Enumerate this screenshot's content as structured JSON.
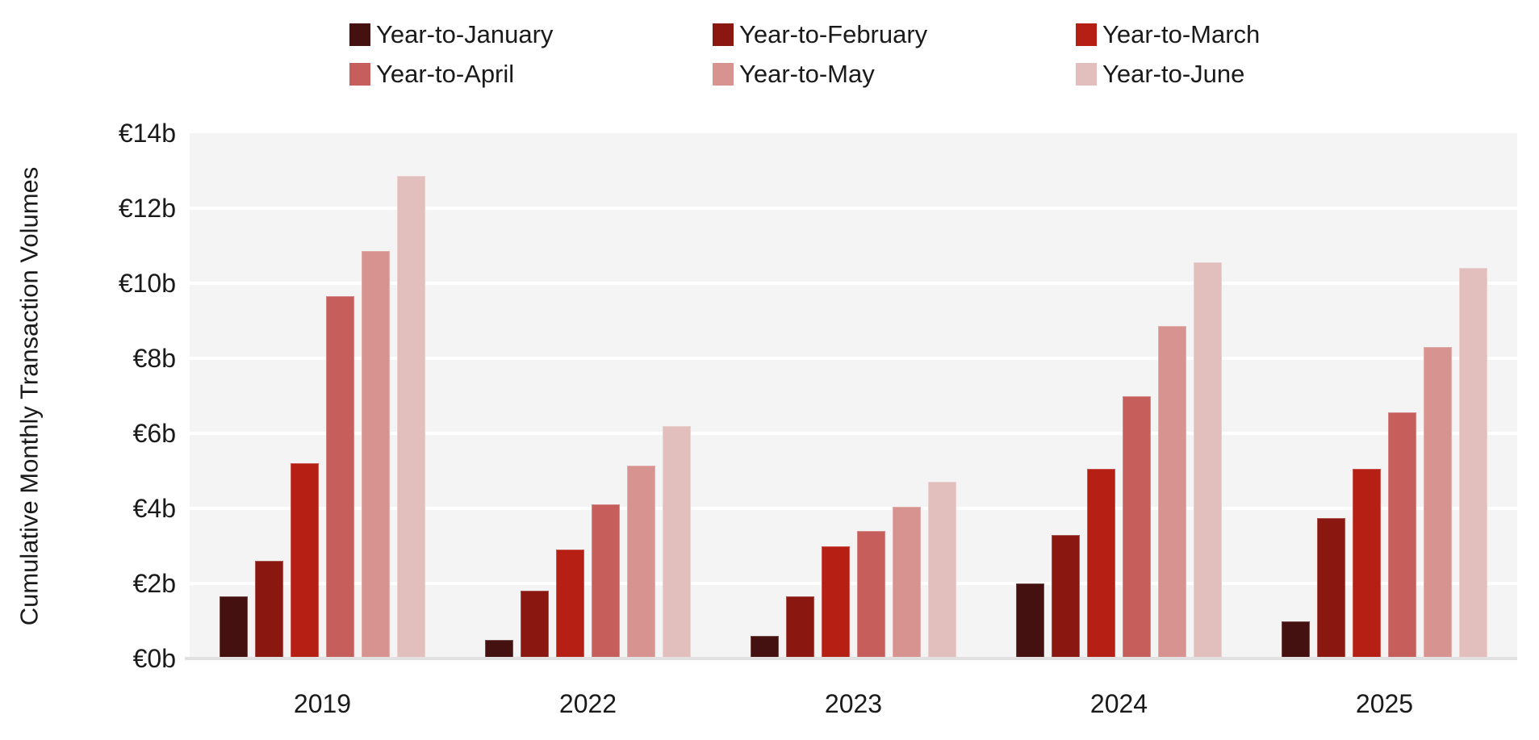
{
  "chart_data": {
    "type": "bar",
    "title": "",
    "ylabel": "Cumulative Monthly Transaction Volumes",
    "xlabel": "",
    "categories": [
      "2019",
      "2022",
      "2023",
      "2024",
      "2025"
    ],
    "series": [
      {
        "name": "Year-to-January",
        "color": "#451010",
        "values": [
          1.65,
          0.5,
          0.6,
          2.0,
          1.0
        ]
      },
      {
        "name": "Year-to-February",
        "color": "#8a1810",
        "values": [
          2.6,
          1.8,
          1.65,
          3.3,
          3.75
        ]
      },
      {
        "name": "Year-to-March",
        "color": "#b62014",
        "values": [
          5.2,
          2.9,
          3.0,
          5.05,
          5.05
        ]
      },
      {
        "name": "Year-to-April",
        "color": "#c65f5c",
        "values": [
          9.65,
          4.1,
          3.4,
          7.0,
          6.55
        ]
      },
      {
        "name": "Year-to-May",
        "color": "#d79390",
        "values": [
          10.85,
          5.15,
          4.05,
          8.85,
          8.3
        ]
      },
      {
        "name": "Year-to-June",
        "color": "#e2bfbd",
        "values": [
          12.85,
          6.2,
          4.7,
          10.55,
          10.4
        ]
      }
    ],
    "y_ticks": [
      "€0b",
      "€2b",
      "€4b",
      "€6b",
      "€8b",
      "€10b",
      "€12b",
      "€14b"
    ],
    "ylim": [
      0,
      14
    ],
    "grid": true,
    "gridline_color": "#ffffff",
    "plot_bg": "#f5f4f4",
    "legend_position": "top",
    "legend_rows": 2,
    "legend_columns": 3
  }
}
